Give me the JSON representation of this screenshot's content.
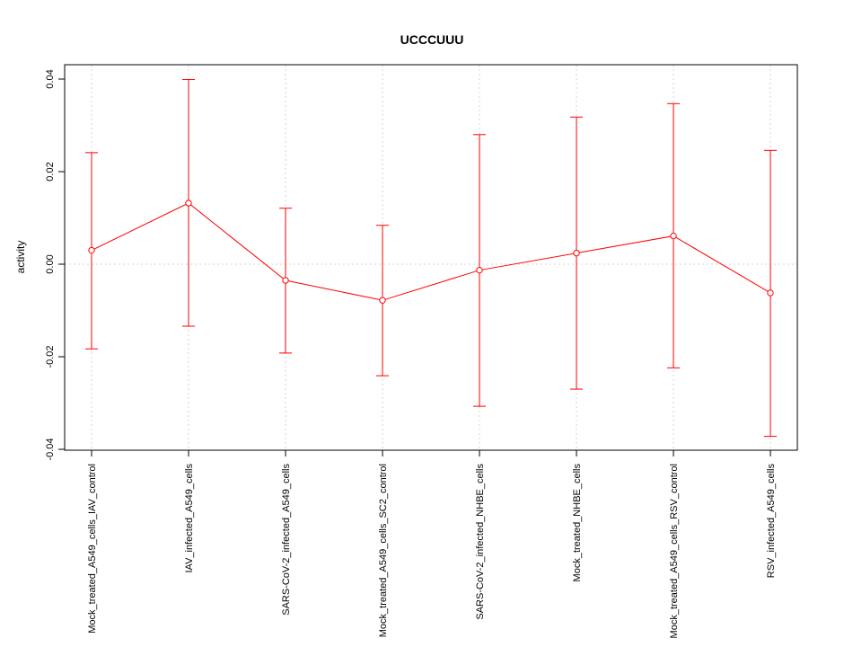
{
  "chart_data": {
    "type": "line",
    "title": "UCCCUUU",
    "xlabel": "",
    "ylabel": "activity",
    "ylim": [
      -0.04,
      0.04
    ],
    "yticks": [
      -0.04,
      -0.02,
      0.0,
      0.02,
      0.04
    ],
    "ytick_labels": [
      "-0.04",
      "-0.02",
      "0.00",
      "0.02",
      "0.04"
    ],
    "grid": true,
    "categories": [
      "Mock_treated_A549_cells_IAV_control",
      "IAV_infected_A549_cells",
      "SARS-CoV-2_infected_A549_cells",
      "Mock_treated_A549_cells_SC2_control",
      "SARS-CoV-2_infected_NHBE_cells",
      "Mock_treated_NHBE_cells",
      "Mock_treated_A549_cells_RSV_control",
      "RSV_infected_A549_cells"
    ],
    "series": [
      {
        "values": [
          0.003,
          0.0132,
          -0.0035,
          -0.0078,
          -0.0013,
          0.0024,
          0.0061,
          -0.0062
        ],
        "lower": [
          -0.0183,
          -0.0134,
          -0.0192,
          -0.0241,
          -0.0307,
          -0.027,
          -0.0224,
          -0.0372
        ],
        "upper": [
          0.0241,
          0.0399,
          0.0121,
          0.0084,
          0.028,
          0.0318,
          0.0347,
          0.0246
        ],
        "color": "#ff0000"
      }
    ]
  }
}
